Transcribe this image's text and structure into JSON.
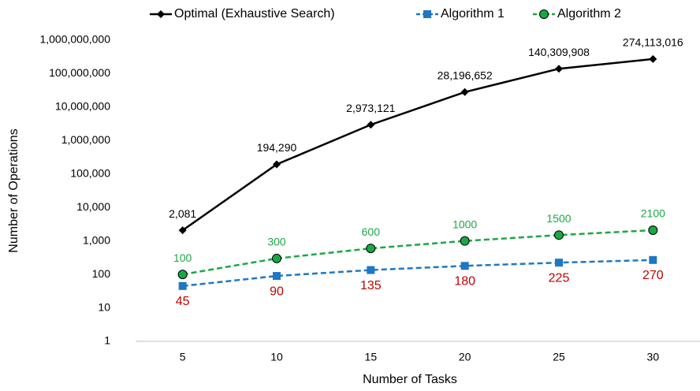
{
  "chart_data": {
    "type": "line",
    "x_label": "Number of Tasks",
    "y_label": "Number of Operations",
    "categories": [
      "5",
      "10",
      "15",
      "20",
      "25",
      "30"
    ],
    "y_scale": "log",
    "ylim": [
      1,
      1000000000
    ],
    "yticks": [
      1,
      10,
      100,
      {
        "value": 1000,
        "label": "1,000"
      },
      {
        "value": 10000,
        "label": "10,000"
      },
      {
        "value": 100000,
        "label": "100,000"
      },
      {
        "value": 1000000,
        "label": "1,000,000"
      },
      {
        "value": 10000000,
        "label": "10,000,000"
      },
      {
        "value": 100000000,
        "label": "100,000,000"
      },
      {
        "value": 1000000000,
        "label": "1,000,000,000"
      }
    ],
    "grid": false,
    "legend": "top",
    "series": [
      {
        "name": "Optimal (Exhaustive Search)",
        "color": "#000000",
        "marker": "diamond",
        "dashed": false,
        "label_color": "#000000",
        "label_position": "above",
        "values": [
          2081,
          194290,
          2973121,
          28196652,
          140309908,
          274113016
        ],
        "value_labels": [
          "2,081",
          "194,290",
          "2,973,121",
          "28,196,652",
          "140,309,908",
          "274,113,016"
        ]
      },
      {
        "name": "Algorithm 1",
        "color": "#1f77c4",
        "marker": "square",
        "dashed": true,
        "label_color": "#c00000",
        "label_position": "below",
        "values": [
          45,
          90,
          135,
          180,
          225,
          270
        ]
      },
      {
        "name": "Algorithm 2",
        "color": "#1aa845",
        "marker": "circle",
        "dashed": true,
        "label_color": "#1aa845",
        "label_position": "above",
        "values": [
          100,
          300,
          600,
          1000,
          1500,
          2100
        ]
      }
    ]
  }
}
